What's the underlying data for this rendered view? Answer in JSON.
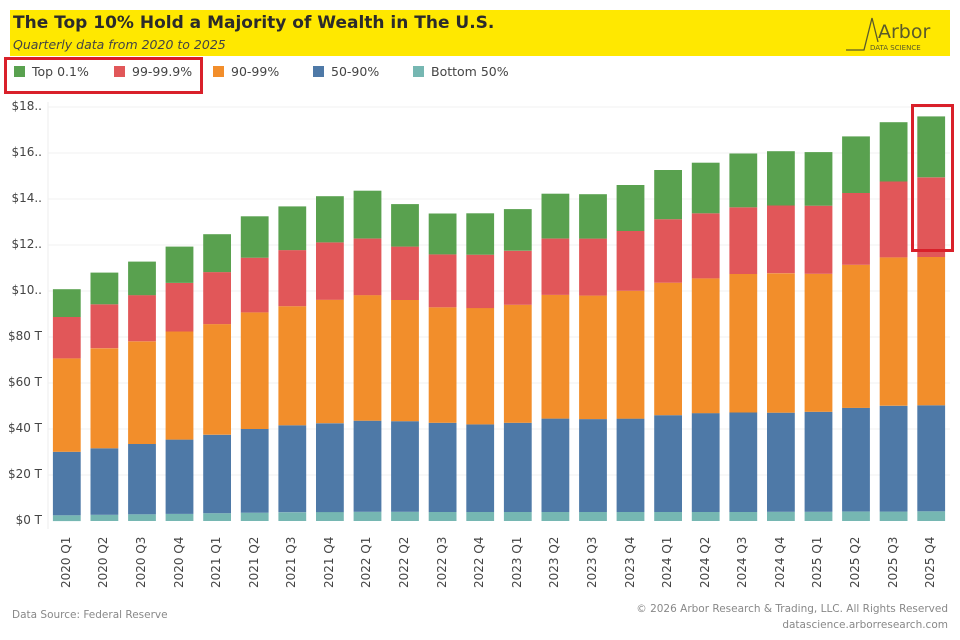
{
  "header": {
    "title": "The Top 10% Hold a Majority of Wealth in The U.S.",
    "subtitle": "Quarterly data from 2020 to 2025",
    "logo_main": "Arbor",
    "logo_sub": "DATA SCIENCE"
  },
  "footer": {
    "source": "Data Source: Federal Reserve",
    "copyright": "© 2026 Arbor Research & Trading, LLC. All Rights Reserved",
    "website": "datascience.arborresearch.com"
  },
  "colors": {
    "banner": "#ffe800",
    "highlight": "#d9202a"
  },
  "chart_data": {
    "type": "bar",
    "stacked": true,
    "title": "The Top 10% Hold a Majority of Wealth in The U.S.",
    "subtitle": "Quarterly data from 2020 to 2025",
    "xlabel": "",
    "ylabel": "",
    "unit": "trillions USD",
    "ylim": [
      0,
      180
    ],
    "y_ticks": [
      0,
      20,
      40,
      60,
      80,
      100,
      120,
      140,
      160,
      180
    ],
    "y_tick_labels": [
      "$0 T",
      "$20 T",
      "$40 T",
      "$60 T",
      "$80 T",
      "$10..",
      "$12..",
      "$14..",
      "$16..",
      "$18.."
    ],
    "grid": true,
    "legend_position": "top-left",
    "categories": [
      "2020 Q1",
      "2020 Q2",
      "2020 Q3",
      "2020 Q4",
      "2021 Q1",
      "2021 Q2",
      "2021 Q3",
      "2021 Q4",
      "2022 Q1",
      "2022 Q2",
      "2022 Q3",
      "2022 Q4",
      "2023 Q1",
      "2023 Q2",
      "2023 Q3",
      "2023 Q4",
      "2024 Q1",
      "2024 Q2",
      "2024 Q3",
      "2024 Q4",
      "2025 Q1",
      "2025 Q2",
      "2025 Q3",
      "2025 Q4"
    ],
    "series": [
      {
        "name": "Bottom 50%",
        "color": "#76b7b2",
        "values": [
          2.5,
          2.7,
          2.9,
          3.1,
          3.4,
          3.6,
          3.8,
          3.9,
          4.0,
          4.0,
          3.9,
          3.9,
          3.9,
          3.9,
          3.9,
          3.9,
          3.9,
          3.9,
          3.9,
          4.0,
          4.0,
          4.1,
          4.1,
          4.2
        ]
      },
      {
        "name": "50-90%",
        "color": "#4e79a7",
        "values": [
          27.6,
          28.9,
          30.6,
          32.3,
          34.1,
          36.4,
          37.8,
          38.6,
          39.6,
          39.4,
          38.8,
          38.1,
          38.8,
          40.6,
          40.4,
          40.6,
          42.1,
          43.0,
          43.3,
          43.1,
          43.5,
          45.1,
          46.0,
          46.1
        ]
      },
      {
        "name": "90-99%",
        "color": "#f28e2b",
        "values": [
          40.6,
          43.5,
          44.6,
          47.0,
          48.1,
          50.7,
          51.8,
          53.7,
          54.6,
          52.7,
          50.2,
          50.6,
          51.3,
          53.8,
          53.7,
          55.6,
          57.6,
          58.6,
          60.2,
          60.6,
          60.0,
          62.2,
          64.5,
          64.5
        ]
      },
      {
        "name": "99-99.9%",
        "color": "#e15759",
        "values": [
          18.0,
          19.1,
          20.1,
          21.1,
          22.6,
          23.8,
          24.4,
          24.9,
          24.6,
          23.2,
          23.0,
          23.2,
          23.5,
          24.5,
          24.8,
          26.0,
          27.6,
          28.3,
          29.0,
          29.5,
          29.6,
          31.2,
          33.0,
          34.6
        ]
      },
      {
        "name": "Top 0.1%",
        "color": "#59a14f",
        "values": [
          12.1,
          13.8,
          14.6,
          15.8,
          16.5,
          18.0,
          19.0,
          20.1,
          20.8,
          18.5,
          17.8,
          18.0,
          18.1,
          19.5,
          19.3,
          20.0,
          21.4,
          22.0,
          23.4,
          23.6,
          23.3,
          24.6,
          25.8,
          26.5
        ]
      }
    ],
    "legend": [
      "Top 0.1%",
      "99-99.9%",
      "90-99%",
      "50-90%",
      "Bottom 50%"
    ],
    "annotations": [
      {
        "type": "highlight-box",
        "target": "legend",
        "items": [
          "Top 0.1%",
          "99-99.9%"
        ]
      },
      {
        "type": "highlight-box",
        "target": "bar",
        "category": "2025 Q4",
        "series": [
          "99-99.9%",
          "Top 0.1%"
        ]
      }
    ]
  }
}
